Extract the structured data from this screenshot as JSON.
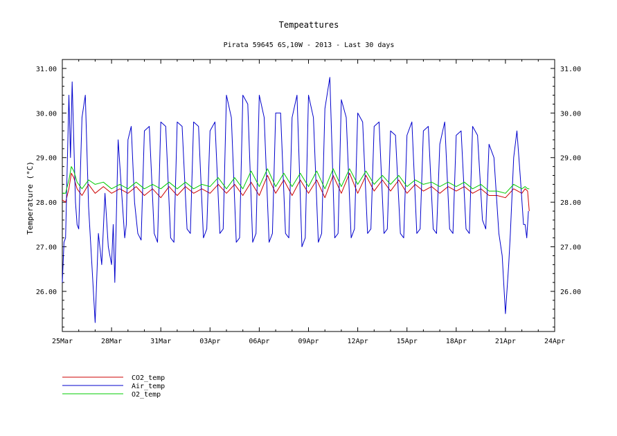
{
  "chart_data": {
    "type": "line",
    "title": "Tempeattures",
    "subtitle": "Pirata 59645 6S,10W - 2013 - Last 30 days",
    "xlabel": "",
    "ylabel": "Temperature (°C)",
    "x_tick_labels": [
      "25Mar",
      "28Mar",
      "31Mar",
      "03Apr",
      "06Apr",
      "09Apr",
      "12Apr",
      "15Apr",
      "18Apr",
      "21Apr",
      "24Apr"
    ],
    "x_range_days": [
      0,
      30
    ],
    "y_tick_labels": [
      "26.00",
      "27.00",
      "28.00",
      "29.00",
      "30.00",
      "31.00"
    ],
    "ylim": [
      25.1,
      31.2
    ],
    "grid": false,
    "legend_position": "bottom-left",
    "series": [
      {
        "name": "CO2_temp",
        "color": "#cc0000",
        "x": [
          0,
          0.2,
          0.4,
          0.55,
          0.7,
          0.9,
          1.2,
          1.6,
          2.0,
          2.5,
          3.0,
          3.5,
          4.0,
          4.5,
          5.0,
          5.5,
          6.0,
          6.5,
          7.0,
          7.5,
          8.0,
          8.5,
          9.0,
          9.5,
          10.0,
          10.5,
          11.0,
          11.5,
          12.0,
          12.5,
          13.0,
          13.5,
          14.0,
          14.5,
          15.0,
          15.5,
          16.0,
          16.5,
          17.0,
          17.5,
          18.0,
          18.5,
          19.0,
          19.5,
          20.0,
          20.5,
          21.0,
          21.5,
          22.0,
          22.5,
          23.0,
          23.5,
          24.0,
          24.5,
          25.0,
          25.5,
          26.0,
          26.5,
          27.0,
          27.5,
          28.0,
          28.2,
          28.35,
          28.45
        ],
        "y": [
          28.05,
          28.0,
          28.3,
          28.65,
          28.55,
          28.3,
          28.15,
          28.4,
          28.2,
          28.35,
          28.2,
          28.3,
          28.2,
          28.35,
          28.15,
          28.3,
          28.1,
          28.35,
          28.15,
          28.35,
          28.2,
          28.3,
          28.2,
          28.4,
          28.2,
          28.4,
          28.15,
          28.45,
          28.15,
          28.6,
          28.2,
          28.5,
          28.15,
          28.5,
          28.2,
          28.5,
          28.1,
          28.6,
          28.2,
          28.65,
          28.2,
          28.6,
          28.25,
          28.5,
          28.25,
          28.5,
          28.2,
          28.4,
          28.25,
          28.35,
          28.2,
          28.35,
          28.25,
          28.35,
          28.2,
          28.3,
          28.15,
          28.15,
          28.1,
          28.3,
          28.2,
          28.3,
          28.25,
          27.8
        ]
      },
      {
        "name": "Air_temp",
        "color": "#0000cc",
        "x": [
          0,
          0.1,
          0.2,
          0.4,
          0.5,
          0.6,
          0.8,
          0.9,
          1.0,
          1.2,
          1.4,
          1.6,
          1.8,
          2.0,
          2.2,
          2.4,
          2.6,
          2.8,
          3.0,
          3.1,
          3.2,
          3.4,
          3.6,
          3.8,
          3.9,
          4.0,
          4.2,
          4.4,
          4.6,
          4.8,
          5.0,
          5.3,
          5.6,
          5.8,
          6.0,
          6.3,
          6.6,
          6.8,
          7.0,
          7.3,
          7.6,
          7.8,
          8.0,
          8.3,
          8.6,
          8.8,
          9.0,
          9.3,
          9.6,
          9.8,
          10.0,
          10.3,
          10.6,
          10.8,
          11.0,
          11.3,
          11.6,
          11.8,
          12.0,
          12.3,
          12.6,
          12.8,
          13.0,
          13.3,
          13.6,
          13.8,
          14.0,
          14.3,
          14.6,
          14.8,
          15.0,
          15.3,
          15.6,
          15.8,
          16.0,
          16.3,
          16.6,
          16.8,
          17.0,
          17.3,
          17.6,
          17.8,
          18.0,
          18.3,
          18.6,
          18.8,
          19.0,
          19.3,
          19.6,
          19.8,
          20.0,
          20.3,
          20.6,
          20.8,
          21.0,
          21.3,
          21.6,
          21.8,
          22.0,
          22.3,
          22.6,
          22.8,
          23.0,
          23.3,
          23.6,
          23.8,
          24.0,
          24.3,
          24.6,
          24.8,
          25.0,
          25.3,
          25.6,
          25.8,
          26.0,
          26.3,
          26.6,
          26.8,
          27.0,
          27.2,
          27.3,
          27.5,
          27.7,
          27.9,
          28.1,
          28.2,
          28.3,
          28.4
        ],
        "y": [
          26.2,
          27.1,
          27.2,
          30.4,
          29.0,
          30.7,
          28.0,
          27.5,
          27.4,
          29.9,
          30.4,
          27.9,
          26.6,
          25.3,
          27.3,
          26.6,
          28.2,
          27.0,
          26.6,
          27.5,
          26.2,
          29.4,
          28.3,
          27.2,
          27.5,
          29.4,
          29.7,
          28.0,
          27.3,
          27.15,
          29.6,
          29.7,
          27.3,
          27.1,
          29.8,
          29.7,
          27.2,
          27.1,
          29.8,
          29.7,
          27.4,
          27.3,
          29.8,
          29.7,
          27.2,
          27.4,
          29.6,
          29.8,
          27.3,
          27.4,
          30.4,
          29.9,
          27.1,
          27.2,
          30.4,
          30.2,
          27.1,
          27.3,
          30.4,
          29.9,
          27.1,
          27.3,
          30.0,
          30.0,
          27.3,
          27.2,
          29.9,
          30.4,
          27.0,
          27.2,
          30.4,
          29.9,
          27.1,
          27.3,
          30.1,
          30.8,
          27.2,
          27.3,
          30.3,
          29.9,
          27.2,
          27.4,
          30.0,
          29.8,
          27.3,
          27.4,
          29.7,
          29.8,
          27.3,
          27.4,
          29.6,
          29.5,
          27.3,
          27.2,
          29.5,
          29.8,
          27.3,
          27.4,
          29.6,
          29.7,
          27.4,
          27.3,
          29.3,
          29.8,
          27.4,
          27.3,
          29.5,
          29.6,
          27.4,
          27.3,
          29.7,
          29.5,
          27.6,
          27.4,
          29.3,
          29.0,
          27.3,
          26.8,
          25.5,
          26.6,
          27.3,
          29.0,
          29.6,
          28.6,
          27.5,
          27.5,
          27.2,
          27.8
        ]
      },
      {
        "name": "O2_temp",
        "color": "#00cc00",
        "x": [
          0,
          0.2,
          0.4,
          0.55,
          0.7,
          0.9,
          1.2,
          1.6,
          2.0,
          2.5,
          3.0,
          3.5,
          4.0,
          4.5,
          5.0,
          5.5,
          6.0,
          6.5,
          7.0,
          7.5,
          8.0,
          8.5,
          9.0,
          9.5,
          10.0,
          10.5,
          11.0,
          11.5,
          12.0,
          12.5,
          13.0,
          13.5,
          14.0,
          14.5,
          15.0,
          15.5,
          16.0,
          16.5,
          17.0,
          17.5,
          18.0,
          18.5,
          19.0,
          19.5,
          20.0,
          20.5,
          21.0,
          21.5,
          22.0,
          22.5,
          23.0,
          23.5,
          24.0,
          24.5,
          25.0,
          25.5,
          26.0,
          26.5,
          27.0,
          27.5,
          28.0,
          28.2,
          28.35,
          28.45
        ],
        "y": [
          28.2,
          28.2,
          28.5,
          28.8,
          28.7,
          28.45,
          28.3,
          28.5,
          28.4,
          28.45,
          28.3,
          28.4,
          28.3,
          28.45,
          28.3,
          28.4,
          28.3,
          28.45,
          28.3,
          28.45,
          28.3,
          28.4,
          28.35,
          28.55,
          28.3,
          28.55,
          28.3,
          28.7,
          28.35,
          28.75,
          28.35,
          28.65,
          28.35,
          28.65,
          28.35,
          28.7,
          28.3,
          28.75,
          28.35,
          28.75,
          28.4,
          28.7,
          28.4,
          28.6,
          28.4,
          28.6,
          28.35,
          28.5,
          28.4,
          28.45,
          28.35,
          28.45,
          28.35,
          28.45,
          28.3,
          28.4,
          28.25,
          28.25,
          28.2,
          28.4,
          28.3,
          28.35,
          28.3,
          28.3
        ]
      }
    ]
  }
}
